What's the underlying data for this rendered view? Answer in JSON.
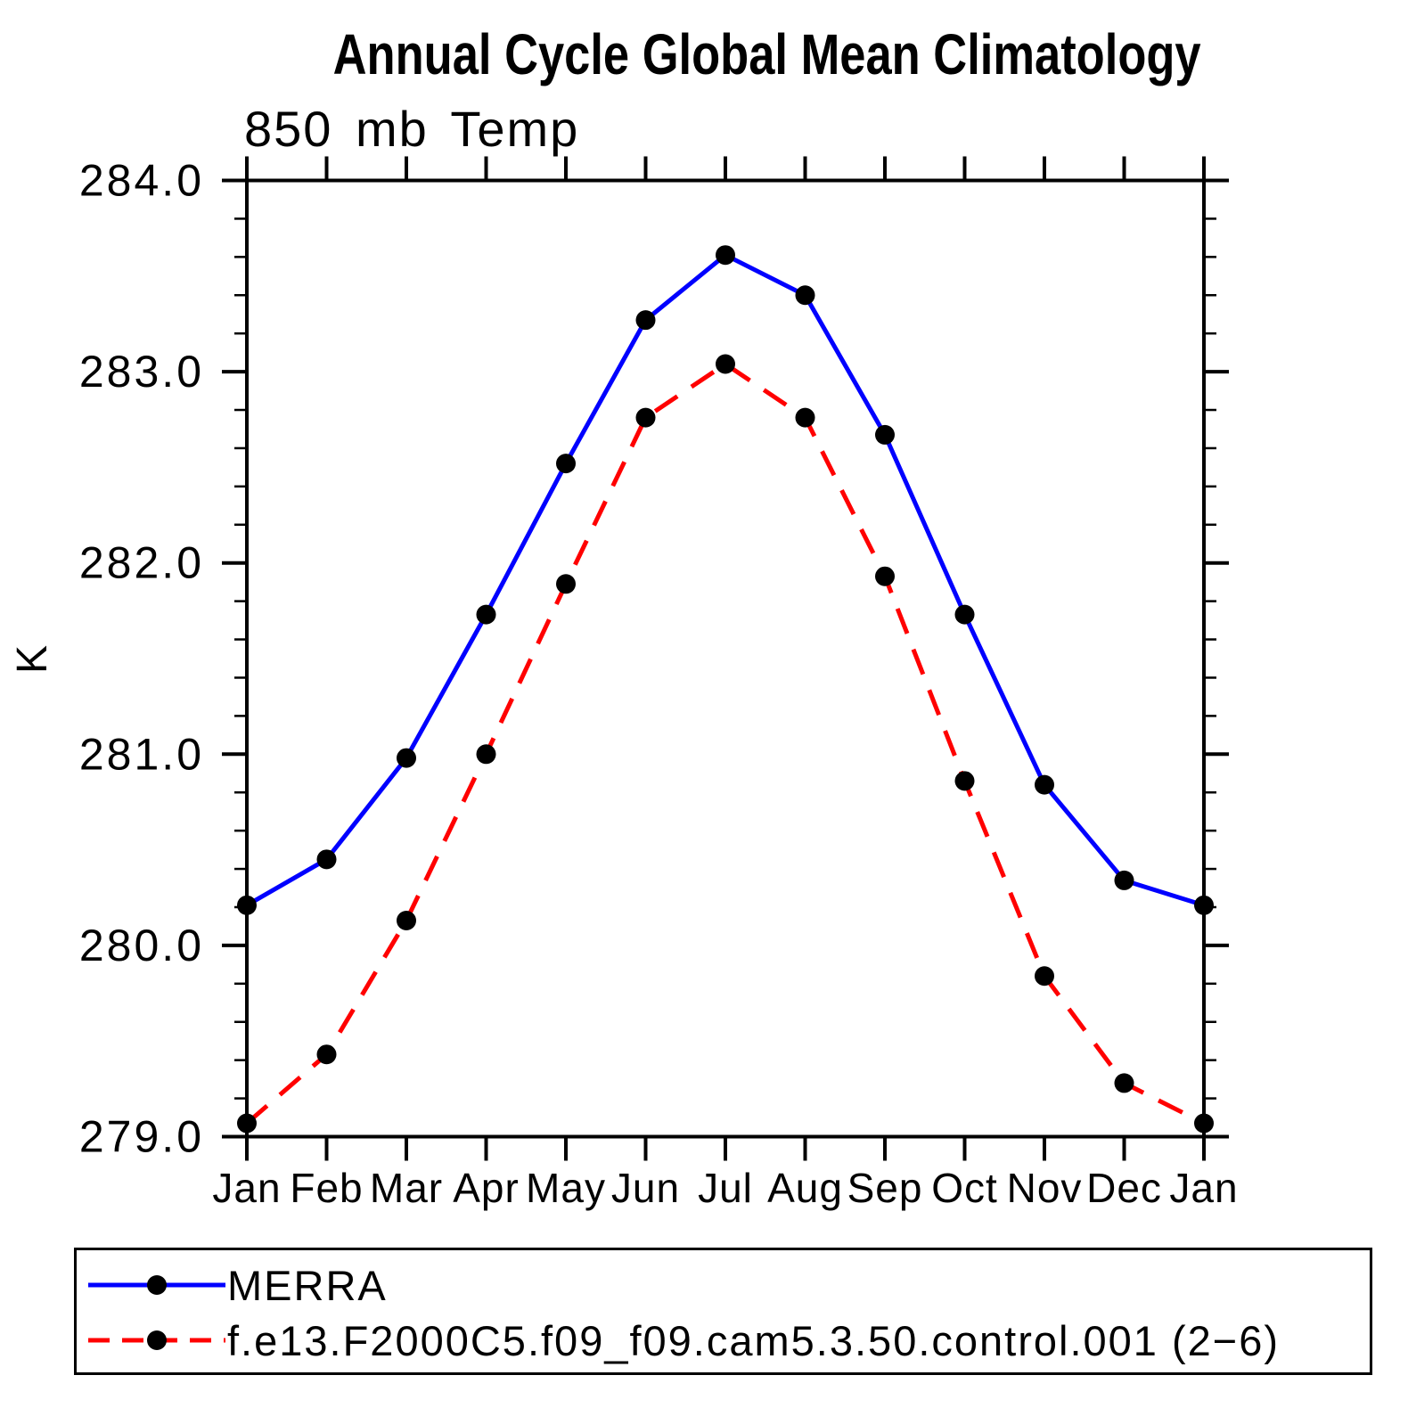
{
  "chart_data": {
    "type": "line",
    "title": "Annual Cycle Global Mean Climatology",
    "subtitle": "850 mb Temp",
    "ylabel": "K",
    "xlabel": "",
    "categories": [
      "Jan",
      "Feb",
      "Mar",
      "Apr",
      "May",
      "Jun",
      "Jul",
      "Aug",
      "Sep",
      "Oct",
      "Nov",
      "Dec",
      "Jan"
    ],
    "series": [
      {
        "name": "MERRA",
        "color": "#0000ff",
        "line_style": "solid",
        "marker": "filled-circle",
        "marker_color": "#000000",
        "values": [
          280.21,
          280.45,
          280.98,
          281.73,
          282.52,
          283.27,
          283.61,
          283.4,
          282.67,
          281.73,
          280.84,
          280.34,
          280.21
        ]
      },
      {
        "name": "f.e13.F2000C5.f09_f09.cam5.3.50.control.001 (2−6)",
        "color": "#ff0000",
        "line_style": "dashed",
        "marker": "filled-circle",
        "marker_color": "#000000",
        "values": [
          279.07,
          279.43,
          280.13,
          281.0,
          281.89,
          282.76,
          283.04,
          282.76,
          281.93,
          280.86,
          279.84,
          279.28,
          279.07
        ]
      }
    ],
    "ylim": [
      279.0,
      284.0
    ],
    "ytick_labels": [
      "284.0",
      "283.0",
      "282.0",
      "281.0",
      "280.0",
      "279.0"
    ],
    "ytick_major_interval": 1.0,
    "ytick_minor_interval": 0.2,
    "grid": false,
    "legend_position": "bottom-left-box"
  }
}
